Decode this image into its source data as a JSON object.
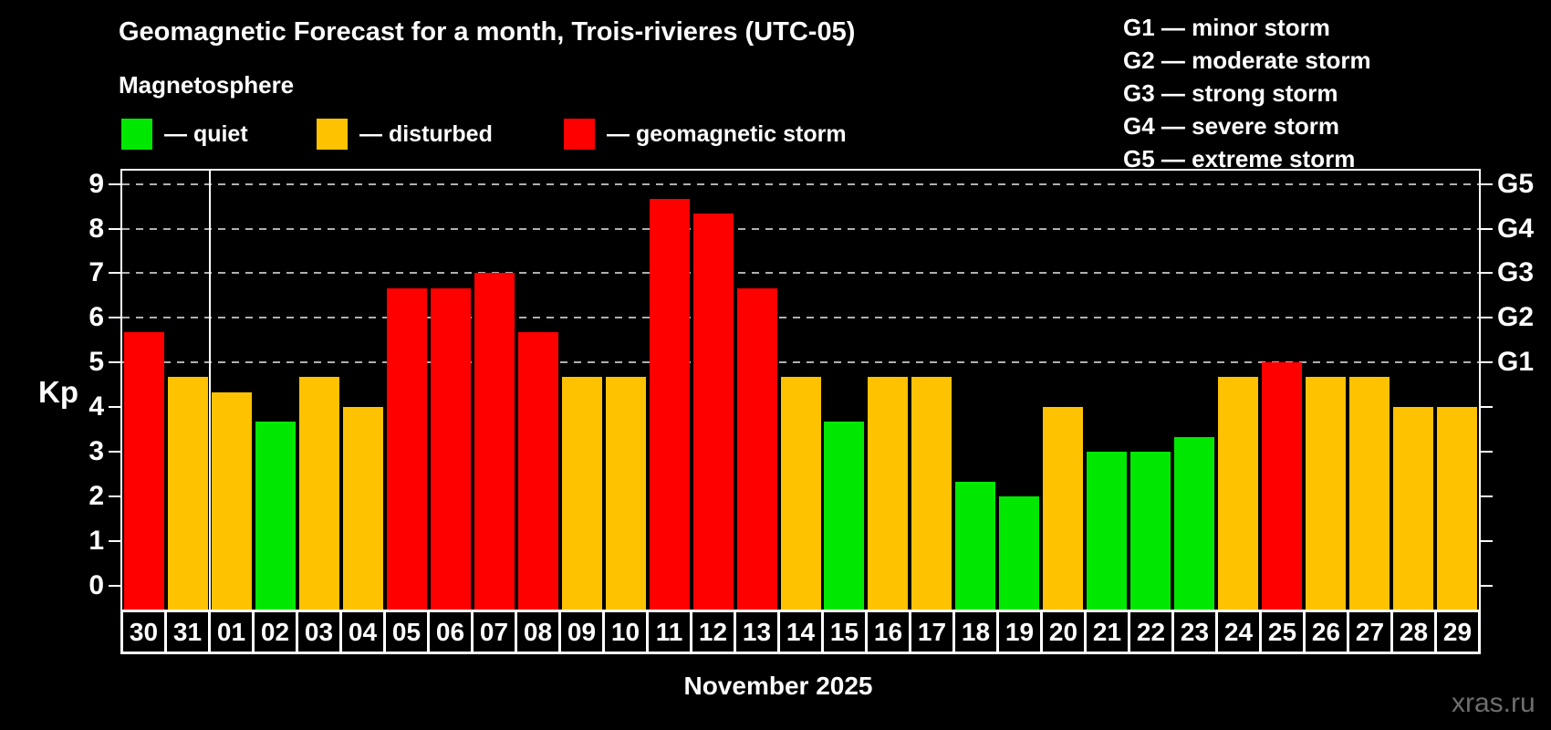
{
  "title": "Geomagnetic Forecast for a month, Trois-rivieres (UTC-05)",
  "subtitle": "Magnetosphere",
  "legend": {
    "quiet": {
      "label": "— quiet",
      "color": "#00e800"
    },
    "disturbed": {
      "label": "— disturbed",
      "color": "#ffc200"
    },
    "storm": {
      "label": "— geomagnetic storm",
      "color": "#ff0000"
    }
  },
  "g_scale_legend": [
    "G1 — minor storm",
    "G2 — moderate storm",
    "G3 — strong storm",
    "G4 — severe storm",
    "G5 — extreme storm"
  ],
  "axes": {
    "y_label": "Kp",
    "y_ticks": [
      0,
      1,
      2,
      3,
      4,
      5,
      6,
      7,
      8,
      9
    ],
    "gridline_levels": [
      5,
      6,
      7,
      8,
      9
    ],
    "right_axis": [
      {
        "label": "G1",
        "kp": 5
      },
      {
        "label": "G2",
        "kp": 6
      },
      {
        "label": "G3",
        "kp": 7
      },
      {
        "label": "G4",
        "kp": 8
      },
      {
        "label": "G5",
        "kp": 9
      }
    ],
    "x_label": "November 2025"
  },
  "watermark": "xras.ru",
  "chart_data": {
    "type": "bar",
    "title": "Geomagnetic Forecast for a month, Trois-rivieres (UTC-05)",
    "xlabel": "November 2025",
    "ylabel": "Kp",
    "ylim": [
      0,
      9
    ],
    "grid": "horizontal dashed at Kp 5-9",
    "legend_position": "top-left",
    "categories": [
      "30",
      "31",
      "01",
      "02",
      "03",
      "04",
      "05",
      "06",
      "07",
      "08",
      "09",
      "10",
      "11",
      "12",
      "13",
      "14",
      "15",
      "16",
      "17",
      "18",
      "19",
      "20",
      "21",
      "22",
      "23",
      "24",
      "25",
      "26",
      "27",
      "28",
      "29"
    ],
    "values": [
      5.67,
      4.67,
      4.33,
      3.67,
      4.67,
      4.0,
      6.67,
      6.67,
      7.0,
      5.67,
      4.67,
      4.67,
      8.67,
      8.33,
      6.67,
      4.67,
      3.67,
      4.67,
      4.67,
      2.33,
      2.0,
      4.0,
      3.0,
      3.0,
      3.33,
      4.67,
      5.0,
      4.67,
      4.67,
      4.0,
      4.0
    ],
    "statuses": [
      "storm",
      "disturbed",
      "disturbed",
      "quiet",
      "disturbed",
      "disturbed",
      "storm",
      "storm",
      "storm",
      "storm",
      "disturbed",
      "disturbed",
      "storm",
      "storm",
      "storm",
      "disturbed",
      "quiet",
      "disturbed",
      "disturbed",
      "quiet",
      "quiet",
      "disturbed",
      "quiet",
      "quiet",
      "quiet",
      "disturbed",
      "storm",
      "disturbed",
      "disturbed",
      "disturbed",
      "disturbed"
    ],
    "month_separator_after_index": 1
  }
}
